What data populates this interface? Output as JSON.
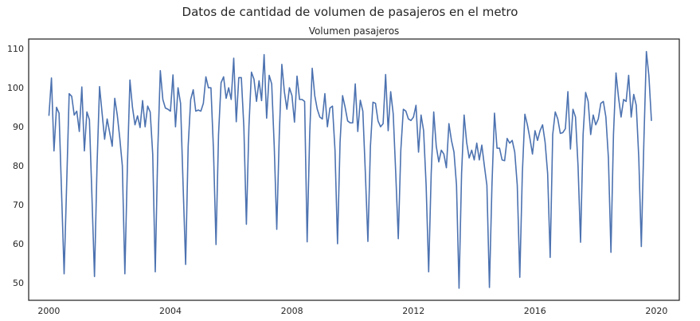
{
  "suptitle": "Datos de cantidad de volumen de pasajeros en el metro",
  "chart_data": {
    "type": "line",
    "title": "Volumen pasajeros",
    "xlabel": "",
    "ylabel": "",
    "grid": false,
    "legend": "none",
    "color": "#4c72b0",
    "xlim": [
      "1999-05-01",
      "2020-10-01"
    ],
    "ylim": [
      45.5,
      112.5
    ],
    "x_ticks": [
      "2000-01-01",
      "2004-01-01",
      "2008-01-01",
      "2012-01-01",
      "2016-01-01",
      "2020-01-01"
    ],
    "x_tick_labels": [
      "2000",
      "2004",
      "2008",
      "2012",
      "2016",
      "2020"
    ],
    "y_ticks": [
      50,
      60,
      70,
      80,
      90,
      100,
      110
    ],
    "y_tick_labels": [
      "50",
      "60",
      "70",
      "80",
      "90",
      "100",
      "110"
    ],
    "series": [
      {
        "start": "2000-01",
        "frequency": "monthly",
        "values": [
          92.8,
          102.5,
          83.8,
          95.0,
          93.5,
          73.0,
          52.3,
          75.0,
          98.5,
          97.8,
          93.0,
          94.0,
          88.8,
          100.2,
          83.8,
          93.8,
          91.8,
          72.0,
          51.6,
          80.0,
          100.3,
          93.5,
          86.8,
          92.0,
          88.5,
          85.0,
          97.3,
          93.0,
          87.0,
          80.0,
          52.3,
          80.0,
          102.0,
          95.0,
          90.5,
          92.8,
          89.8,
          96.7,
          90.0,
          95.3,
          93.8,
          83.0,
          52.8,
          84.0,
          104.4,
          97.0,
          94.8,
          94.5,
          94.0,
          103.3,
          90.0,
          100.0,
          96.0,
          75.0,
          54.7,
          85.0,
          97.0,
          99.5,
          94.0,
          94.3,
          94.0,
          96.0,
          102.8,
          100.0,
          100.0,
          84.0,
          59.8,
          88.0,
          101.3,
          102.8,
          97.3,
          100.0,
          97.0,
          107.6,
          91.3,
          102.6,
          102.6,
          90.0,
          65.0,
          90.0,
          104.0,
          102.2,
          96.5,
          101.8,
          96.7,
          108.5,
          92.2,
          103.2,
          101.0,
          85.0,
          63.7,
          88.0,
          106.0,
          99.0,
          94.5,
          100.0,
          98.0,
          91.2,
          103.0,
          97.0,
          97.0,
          96.5,
          60.5,
          88.0,
          105.0,
          98.0,
          94.5,
          92.5,
          92.0,
          98.5,
          90.0,
          94.8,
          95.3,
          84.0,
          60.0,
          86.0,
          98.0,
          95.0,
          91.5,
          91.0,
          91.0,
          101.0,
          88.8,
          96.8,
          94.0,
          78.0,
          60.6,
          85.0,
          96.3,
          96.0,
          91.5,
          90.0,
          90.8,
          103.4,
          89.0,
          99.0,
          93.3,
          78.0,
          61.3,
          84.0,
          94.5,
          94.0,
          92.0,
          91.6,
          92.5,
          95.5,
          83.5,
          93.0,
          89.0,
          75.0,
          52.8,
          78.0,
          93.8,
          85.0,
          81.0,
          84.0,
          83.0,
          79.5,
          90.8,
          86.5,
          83.5,
          75.0,
          48.6,
          78.0,
          93.0,
          86.0,
          82.0,
          84.0,
          81.5,
          85.8,
          81.5,
          85.3,
          80.0,
          75.0,
          48.8,
          75.0,
          93.5,
          84.5,
          84.5,
          81.5,
          81.3,
          87.0,
          85.8,
          86.5,
          83.5,
          75.0,
          51.4,
          78.0,
          93.2,
          90.5,
          87.0,
          83.0,
          89.0,
          86.5,
          89.0,
          90.5,
          86.0,
          78.0,
          56.5,
          88.0,
          93.8,
          92.0,
          88.3,
          88.5,
          89.5,
          99.0,
          84.3,
          94.5,
          92.5,
          80.0,
          60.4,
          88.0,
          98.8,
          96.5,
          88.0,
          93.0,
          90.5,
          92.0,
          96.0,
          96.5,
          92.5,
          82.0,
          57.8,
          88.0,
          103.8,
          97.5,
          92.5,
          97.0,
          96.5,
          103.2,
          92.5,
          98.3,
          95.5,
          82.0,
          59.3,
          86.0,
          109.3,
          103.0,
          91.5
        ]
      }
    ]
  }
}
